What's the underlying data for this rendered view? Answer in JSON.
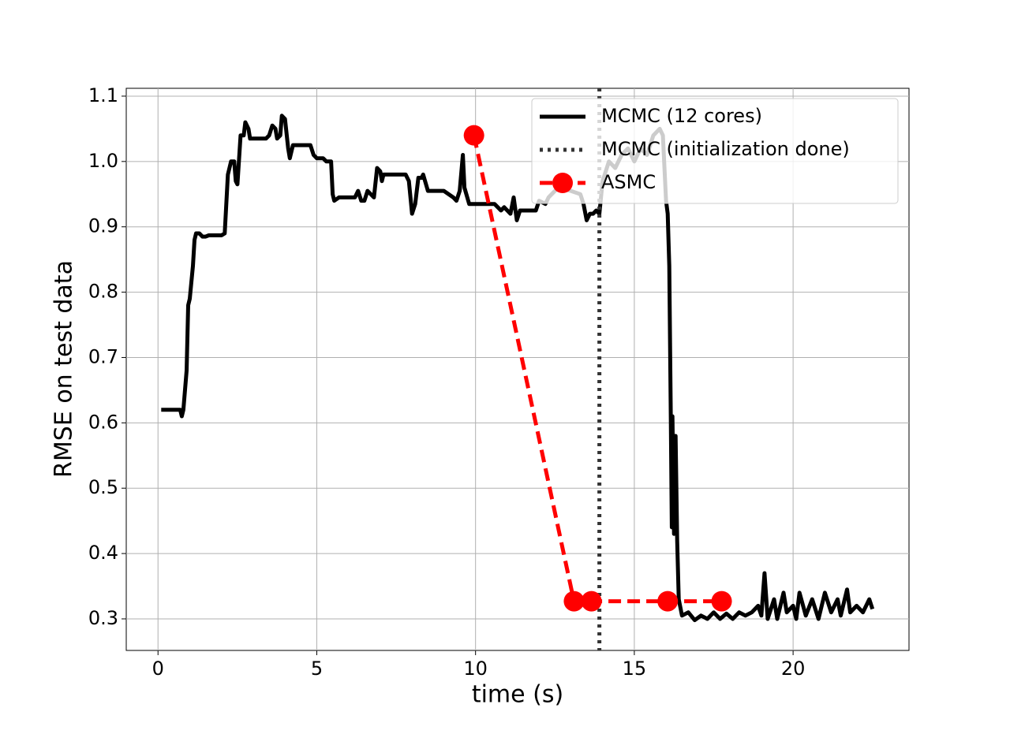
{
  "chart_data": {
    "type": "line",
    "xlabel": "time (s)",
    "ylabel": "RMSE on test data",
    "xlim": [
      -1.0,
      23.65
    ],
    "ylim": [
      0.2517,
      1.112
    ],
    "xticks": [
      0,
      5,
      10,
      15,
      20
    ],
    "yticks": [
      0.3,
      0.4,
      0.5,
      0.6,
      0.7,
      0.8,
      0.9,
      {
        "value": 1,
        "label": "1.0"
      },
      1.1
    ],
    "grid": true,
    "legend": "upper right",
    "series": [
      {
        "name": "MCMC (12 cores)",
        "color": "#000000",
        "style": "solid",
        "x": [
          0.1,
          0.7,
          0.75,
          0.8,
          0.9,
          0.95,
          1.0,
          1.1,
          1.15,
          1.2,
          1.3,
          1.4,
          1.5,
          1.6,
          2.0,
          2.1,
          2.2,
          2.3,
          2.4,
          2.45,
          2.5,
          2.6,
          2.7,
          2.75,
          2.85,
          2.9,
          3.4,
          3.5,
          3.6,
          3.7,
          3.75,
          3.85,
          3.9,
          4.0,
          4.1,
          4.15,
          4.25,
          4.8,
          4.9,
          5.0,
          5.2,
          5.3,
          5.45,
          5.5,
          5.55,
          5.7,
          6.2,
          6.3,
          6.4,
          6.5,
          6.6,
          6.8,
          6.9,
          7.0,
          7.05,
          7.1,
          7.8,
          7.9,
          8.0,
          8.1,
          8.2,
          8.3,
          8.35,
          8.5,
          9.0,
          9.3,
          9.4,
          9.5,
          9.6,
          9.65,
          9.8,
          10.0,
          10.6,
          10.8,
          10.9,
          11.1,
          11.2,
          11.3,
          11.4,
          11.9,
          12.0,
          12.2,
          12.3,
          12.6,
          13.0,
          13.3,
          13.4,
          13.5,
          13.6,
          13.7,
          13.8,
          13.9,
          14.0,
          14.2,
          14.4,
          14.6,
          14.8,
          15.0,
          15.2,
          15.4,
          15.6,
          15.8,
          15.9,
          16.0,
          16.05,
          16.1,
          16.15,
          16.18,
          16.2,
          16.25,
          16.3,
          16.35,
          16.4,
          16.5,
          16.7,
          16.9,
          17.1,
          17.3,
          17.5,
          17.7,
          17.9,
          18.1,
          18.3,
          18.5,
          18.7,
          18.9,
          19.0,
          19.1,
          19.2,
          19.4,
          19.5,
          19.7,
          19.8,
          20.0,
          20.1,
          20.2,
          20.4,
          20.6,
          20.8,
          21.0,
          21.2,
          21.4,
          21.5,
          21.7,
          21.8,
          22.0,
          22.2,
          22.4,
          22.5
        ],
        "values": [
          0.62,
          0.62,
          0.61,
          0.62,
          0.68,
          0.78,
          0.79,
          0.84,
          0.88,
          0.89,
          0.89,
          0.885,
          0.885,
          0.887,
          0.887,
          0.89,
          0.98,
          1.0,
          1.0,
          0.97,
          0.965,
          1.04,
          1.04,
          1.06,
          1.05,
          1.035,
          1.035,
          1.04,
          1.055,
          1.05,
          1.035,
          1.04,
          1.07,
          1.065,
          1.02,
          1.005,
          1.025,
          1.025,
          1.01,
          1.005,
          1.005,
          1.0,
          1.0,
          0.95,
          0.94,
          0.945,
          0.945,
          0.955,
          0.94,
          0.94,
          0.955,
          0.945,
          0.99,
          0.985,
          0.97,
          0.98,
          0.98,
          0.97,
          0.92,
          0.935,
          0.975,
          0.975,
          0.98,
          0.955,
          0.955,
          0.945,
          0.94,
          0.955,
          1.01,
          0.96,
          0.935,
          0.935,
          0.935,
          0.925,
          0.93,
          0.92,
          0.945,
          0.91,
          0.925,
          0.925,
          0.94,
          0.935,
          0.945,
          0.96,
          0.955,
          0.95,
          0.935,
          0.91,
          0.92,
          0.92,
          0.925,
          0.92,
          0.97,
          1.0,
          0.99,
          1.01,
          1.02,
          1.0,
          1.02,
          1.01,
          1.04,
          1.05,
          1.04,
          0.94,
          0.92,
          0.84,
          0.6,
          0.44,
          0.61,
          0.43,
          0.58,
          0.42,
          0.33,
          0.305,
          0.31,
          0.298,
          0.305,
          0.3,
          0.31,
          0.3,
          0.308,
          0.3,
          0.31,
          0.305,
          0.31,
          0.32,
          0.305,
          0.37,
          0.3,
          0.33,
          0.3,
          0.34,
          0.31,
          0.32,
          0.3,
          0.34,
          0.305,
          0.33,
          0.3,
          0.34,
          0.31,
          0.33,
          0.305,
          0.345,
          0.31,
          0.32,
          0.31,
          0.33,
          0.315
        ]
      },
      {
        "name": "MCMC (initialization done)",
        "color": "#333333",
        "style": "dotted",
        "vline": 13.9
      },
      {
        "name": "ASMC",
        "color": "#ff0000",
        "style": "dashed",
        "marker": true,
        "x": [
          9.95,
          13.1,
          13.65,
          16.05,
          17.75
        ],
        "values": [
          1.04,
          0.327,
          0.327,
          0.327,
          0.327
        ]
      }
    ]
  }
}
